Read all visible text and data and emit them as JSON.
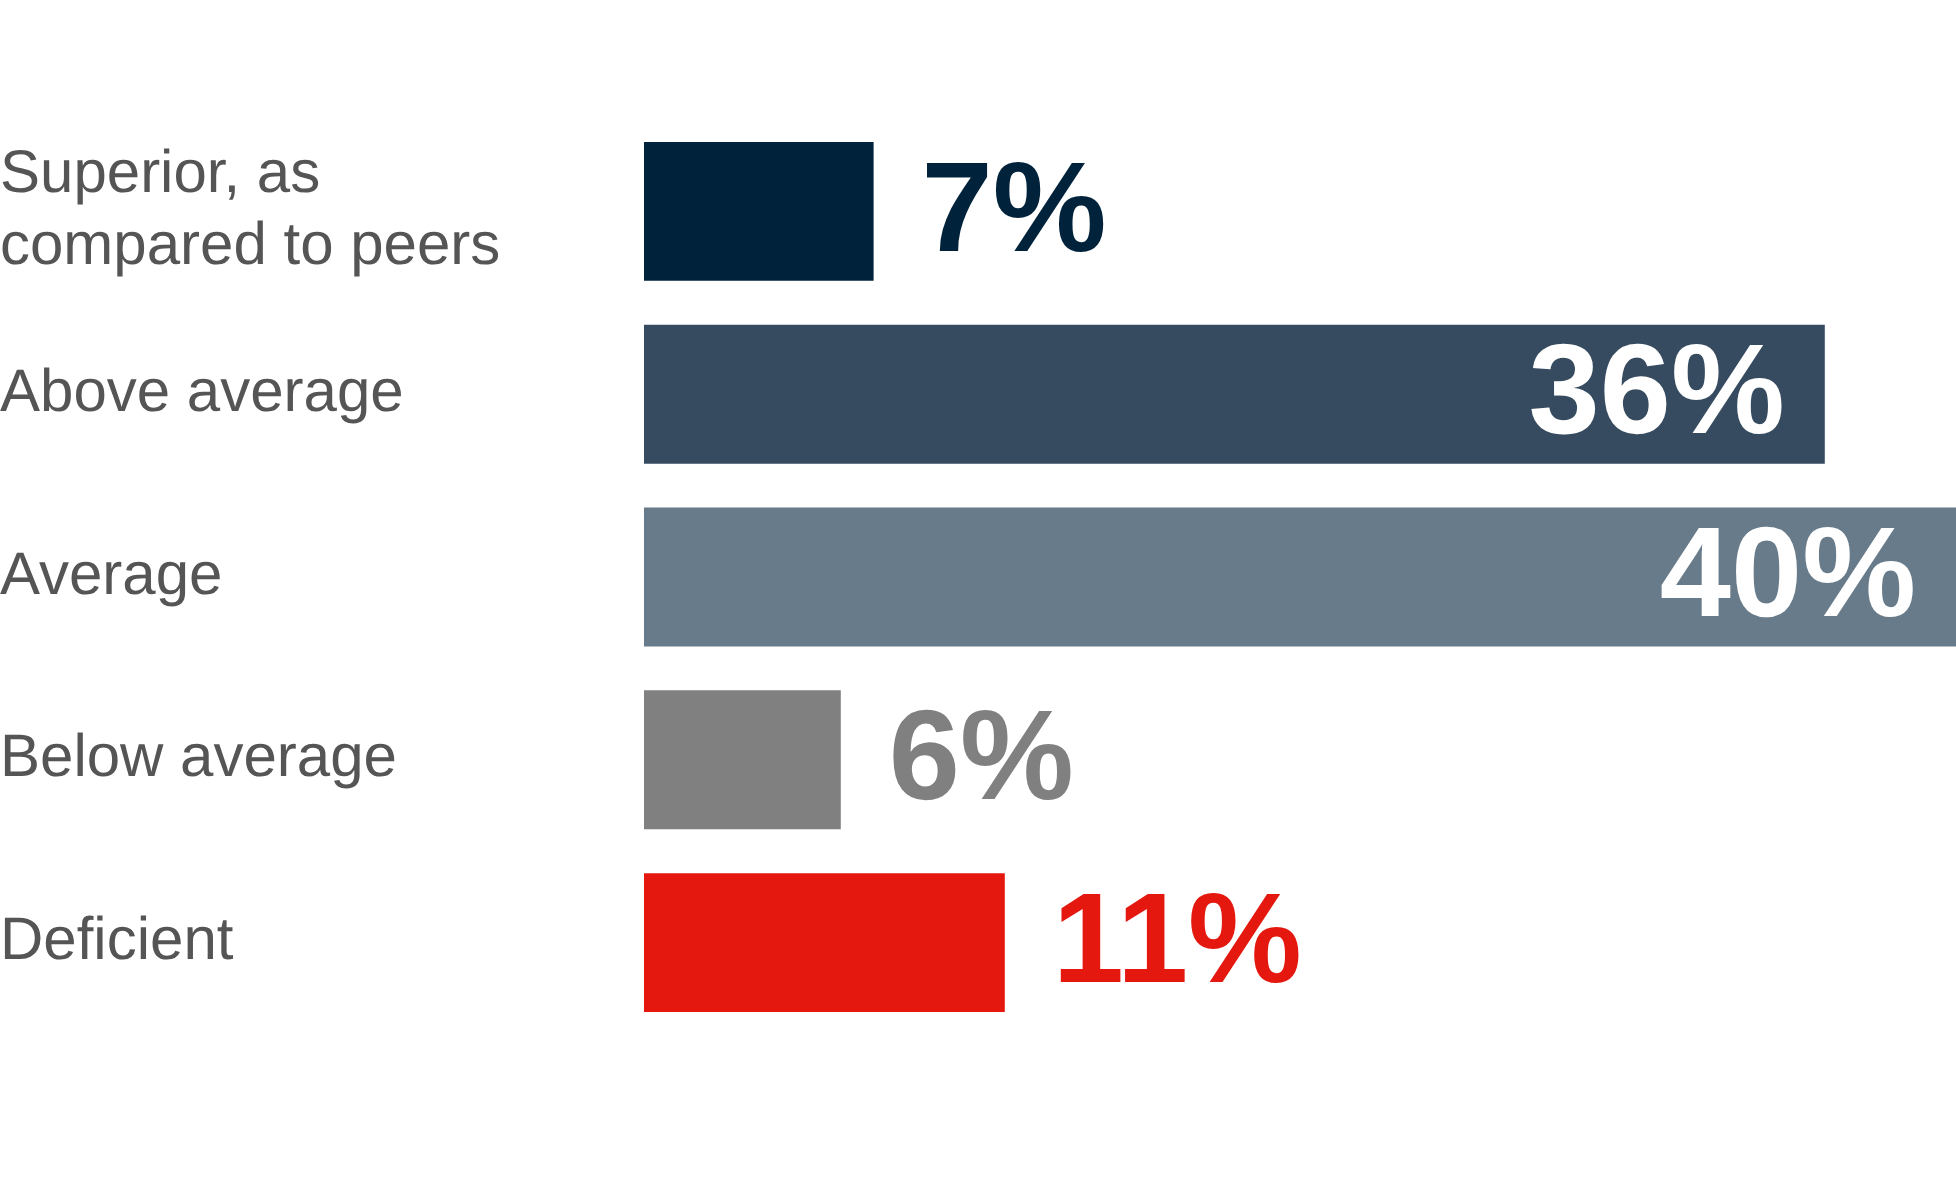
{
  "chart_data": {
    "type": "bar",
    "orientation": "horizontal",
    "categories": [
      "Superior, as compared to peers",
      "Above average",
      "Average",
      "Below average",
      "Deficient"
    ],
    "values": [
      7,
      36,
      40,
      6,
      11
    ],
    "colors": [
      "#00223a",
      "#364b5f",
      "#687b8a",
      "#808080",
      "#e5180f"
    ],
    "value_labels": [
      "7%",
      "36%",
      "40%",
      "6%",
      "11%"
    ],
    "xlim": [
      0,
      40
    ],
    "tick_labels": "y",
    "legend": false
  }
}
